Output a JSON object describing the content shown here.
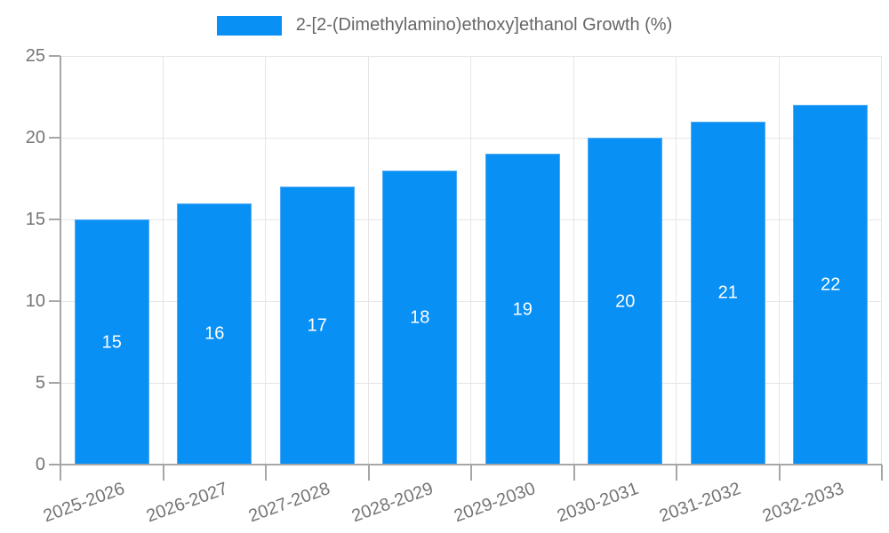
{
  "chart_data": {
    "type": "bar",
    "title": "2-[2-(Dimethylamino)ethoxy]ethanol Growth (%)",
    "categories": [
      "2025-2026",
      "2026-2027",
      "2027-2028",
      "2028-2029",
      "2029-2030",
      "2030-2031",
      "2031-2032",
      "2032-2033"
    ],
    "values": [
      15,
      16,
      17,
      18,
      19,
      20,
      21,
      22
    ],
    "xlabel": "",
    "ylabel": "",
    "ylim": [
      0,
      25
    ],
    "yticks": [
      0,
      5,
      10,
      15,
      20,
      25
    ],
    "grid": true,
    "legend_position": "top",
    "value_label_position": "inside-middle"
  },
  "colors": {
    "bar": "#0990f5",
    "bar_edge": "#4fabf7",
    "grid": "#e5e5e5",
    "axis": "#a6a6a6",
    "tick_text": "#757575",
    "legend_text": "#666666",
    "value_text": "#ffffff",
    "background": "#ffffff"
  }
}
